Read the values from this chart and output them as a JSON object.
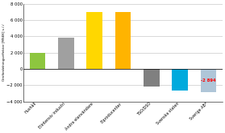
{
  "categories": [
    "Hushåll",
    "Elintensiv industri",
    "Andra elanvändare",
    "Elproducenter",
    "TSO/DSO",
    "Svenska staten",
    "Sverige AB*"
  ],
  "values": [
    2000,
    3800,
    7000,
    7000,
    -2200,
    -2700,
    -2894
  ],
  "bar_colors": [
    "#8DC63F",
    "#A0A0A0",
    "#FFD700",
    "#FFB400",
    "#808080",
    "#00AADD",
    "#AFC6D8"
  ],
  "ylabel": "Omfördelningseffekter [MSEK] s /-/",
  "ylim": [
    -4000,
    8000
  ],
  "yticks": [
    -4000,
    -2000,
    0,
    2000,
    4000,
    6000,
    8000
  ],
  "annotation_text": "-2 894",
  "annotation_color": "#FF0000",
  "background_color": "#FFFFFF",
  "grid_color": "#BBBBBB",
  "bar_width": 0.55
}
